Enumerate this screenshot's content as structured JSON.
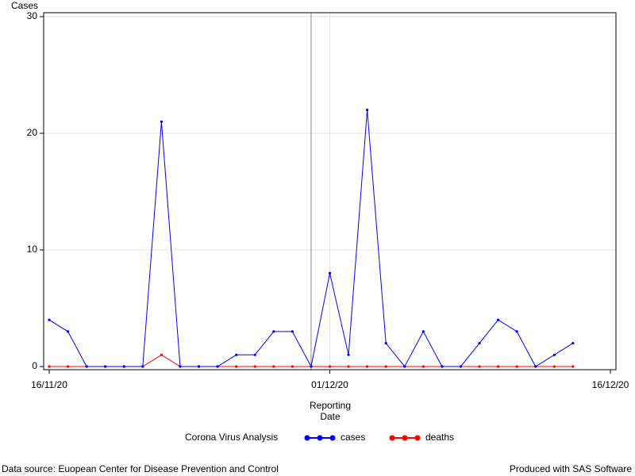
{
  "chart_data": {
    "type": "line",
    "ylabel": "Cases",
    "xlabel": [
      "Reporting",
      "Date"
    ],
    "legend_title": "Corona Virus Analysis",
    "legend": "bottom",
    "footnote_left": "Data source: Euopean Center for Disease Prevention and Control",
    "footnote_right": "Produced with SAS Software",
    "x": [
      "16/11/20",
      "17/11/20",
      "18/11/20",
      "19/11/20",
      "20/11/20",
      "21/11/20",
      "22/11/20",
      "23/11/20",
      "24/11/20",
      "25/11/20",
      "26/11/20",
      "27/11/20",
      "28/11/20",
      "29/11/20",
      "30/11/20",
      "01/12/20",
      "02/12/20",
      "03/12/20",
      "04/12/20",
      "05/12/20",
      "06/12/20",
      "07/12/20",
      "08/12/20",
      "09/12/20",
      "10/12/20",
      "11/12/20",
      "12/12/20",
      "13/12/20",
      "14/12/20"
    ],
    "series": [
      {
        "name": "cases",
        "color": "#0000ff",
        "values": [
          4,
          3,
          0,
          0,
          0,
          0,
          21,
          0,
          0,
          0,
          1,
          1,
          3,
          3,
          0,
          8,
          1,
          22,
          2,
          0,
          3,
          0,
          0,
          2,
          4,
          3,
          0,
          1,
          2
        ]
      },
      {
        "name": "deaths",
        "color": "#ff0000",
        "values": [
          0,
          0,
          0,
          0,
          0,
          0,
          1,
          0,
          0,
          0,
          0,
          0,
          0,
          0,
          0,
          0,
          0,
          0,
          0,
          0,
          0,
          0,
          0,
          0,
          0,
          0,
          0,
          0,
          0
        ]
      }
    ],
    "xlim": [
      "16/11/20",
      "16/12/20"
    ],
    "xticks": [
      "16/11/20",
      "01/12/20",
      "16/12/20"
    ],
    "ylim": [
      0,
      30
    ],
    "yticks": [
      0,
      10,
      20,
      30
    ],
    "refline_x": "30/11/20",
    "grid": true
  }
}
